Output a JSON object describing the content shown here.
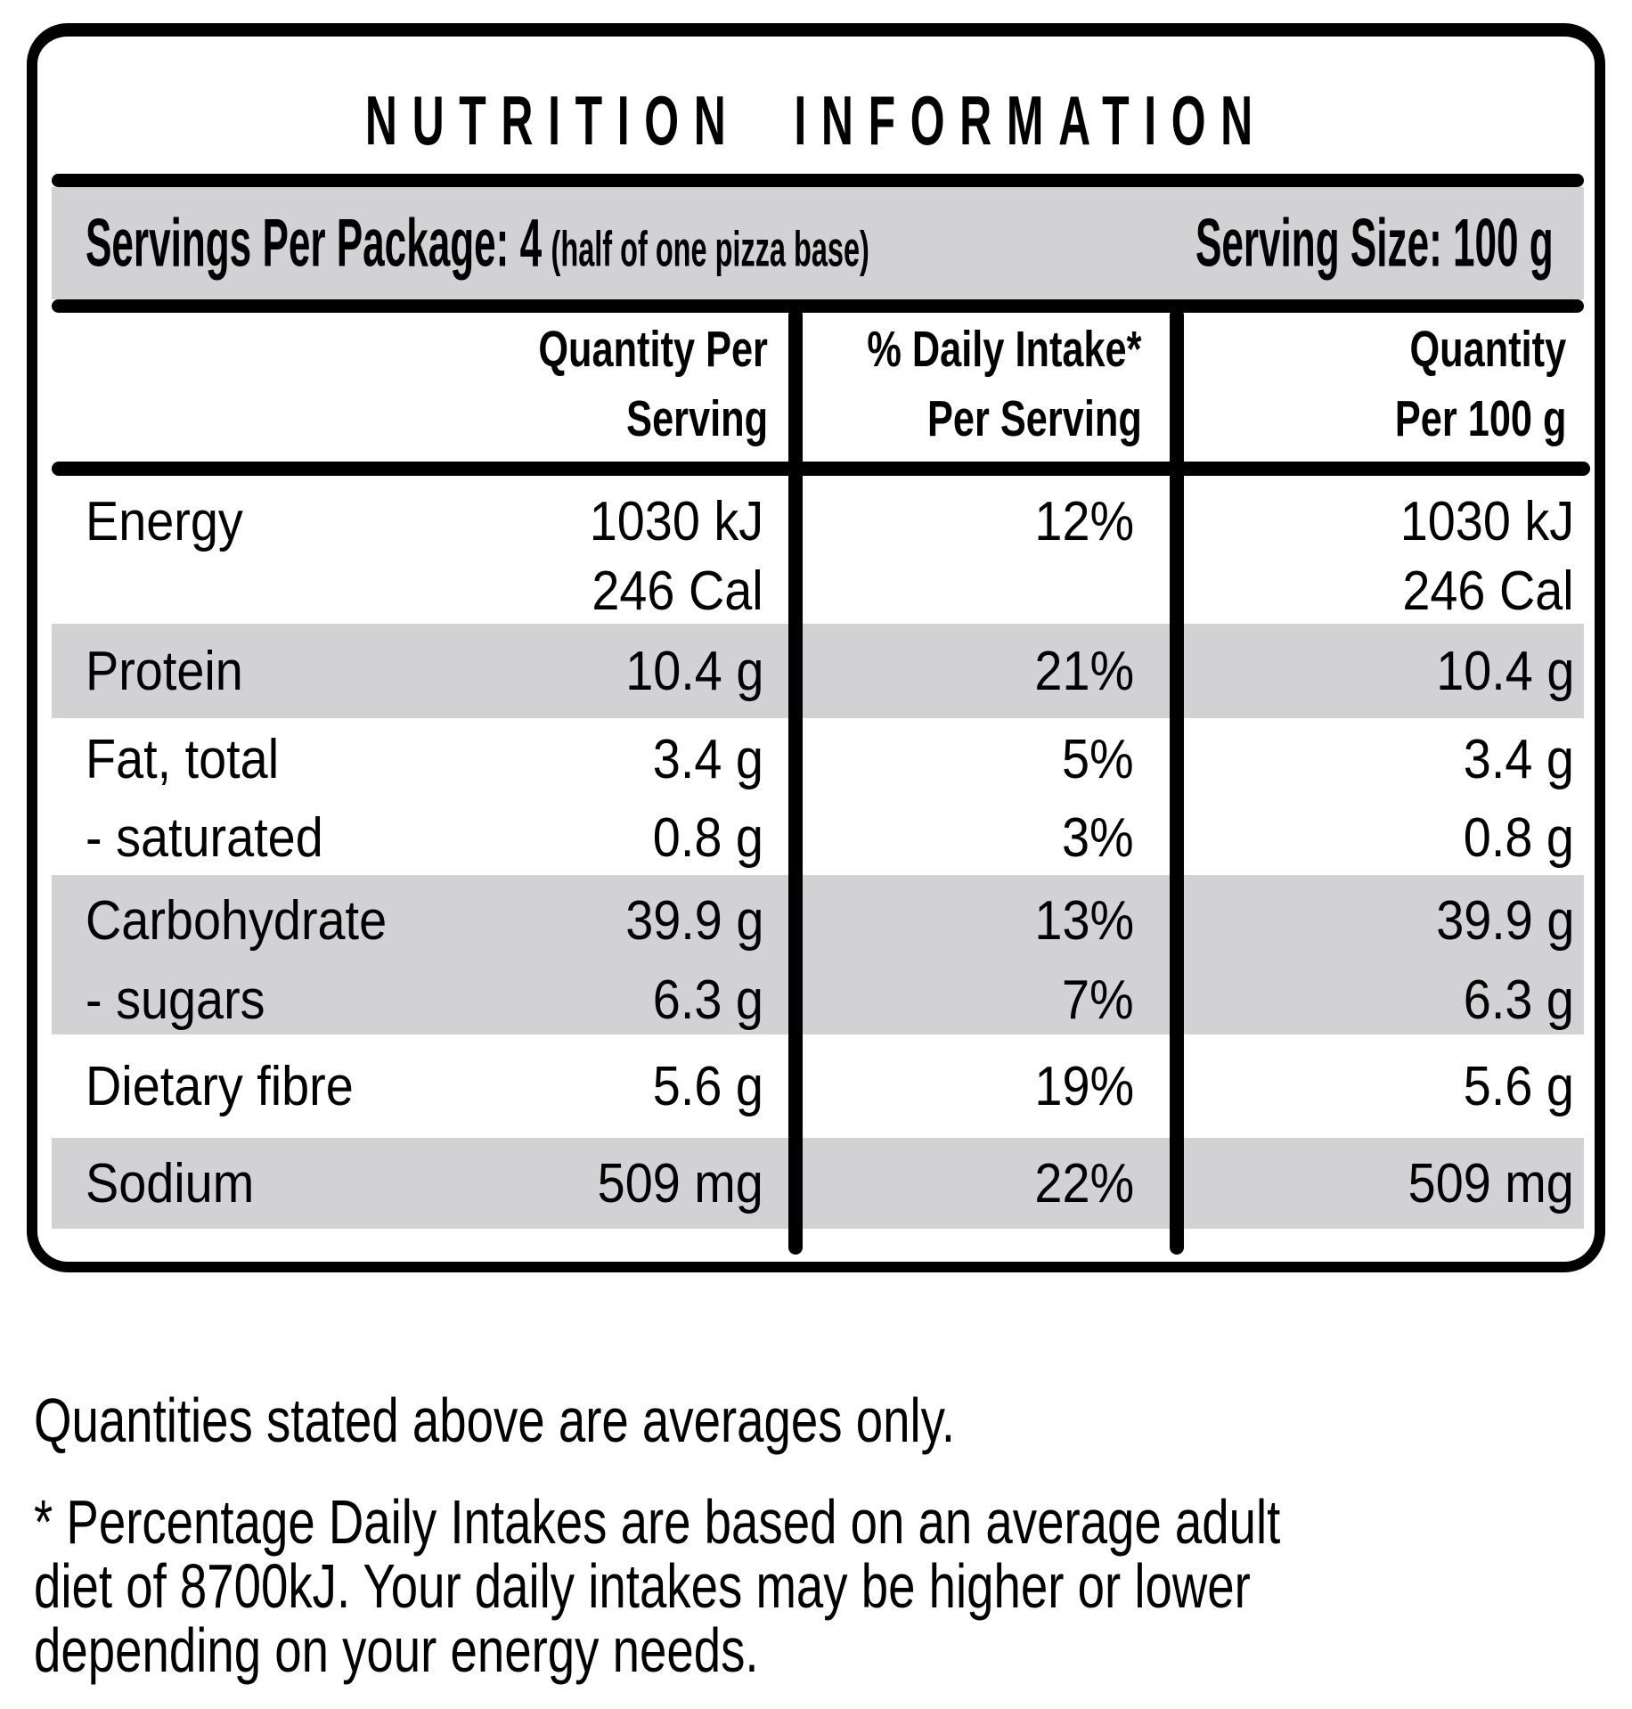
{
  "colors": {
    "ink": "#000000",
    "shaded_row": "#d2d2d5",
    "background": "#ffffff"
  },
  "panel": {
    "title": "NUTRITION INFORMATION",
    "servings": {
      "package_label": "Servings Per Package: 4",
      "package_note": "(half of one pizza base)",
      "size_label": "Serving Size: 100 g"
    },
    "columns": {
      "qty_serving": [
        "Quantity Per",
        "Serving"
      ],
      "pct_daily": [
        "% Daily Intake*",
        "Per Serving"
      ],
      "qty_100": [
        "Quantity",
        "Per 100 g"
      ]
    },
    "rows": [
      {
        "label": "Energy",
        "qps": "1030 kJ",
        "qps2": "246 Cal",
        "pct": "12%",
        "q100": "1030 kJ",
        "q1002": "246 Cal"
      },
      {
        "label": "Protein",
        "qps": "10.4 g",
        "pct": "21%",
        "q100": "10.4 g"
      },
      {
        "label": "Fat, total",
        "qps": "3.4 g",
        "pct": "5%",
        "q100": "3.4 g"
      },
      {
        "label": "- saturated",
        "qps": "0.8 g",
        "pct": "3%",
        "q100": "0.8 g"
      },
      {
        "label": "Carbohydrate",
        "qps": "39.9 g",
        "pct": "13%",
        "q100": "39.9 g"
      },
      {
        "label": "- sugars",
        "qps": "6.3 g",
        "pct": "7%",
        "q100": "6.3 g"
      },
      {
        "label": "Dietary fibre",
        "qps": "5.6 g",
        "pct": "19%",
        "q100": "5.6 g"
      },
      {
        "label": "Sodium",
        "qps": "509 mg",
        "pct": "22%",
        "q100": "509 mg"
      }
    ]
  },
  "footnotes": {
    "averages": "Quantities stated above are averages only.",
    "daily_intake_lines": [
      "* Percentage Daily Intakes are based on an average adult",
      "diet of 8700kJ. Your daily intakes may be higher or lower",
      "depending on your energy needs."
    ]
  }
}
